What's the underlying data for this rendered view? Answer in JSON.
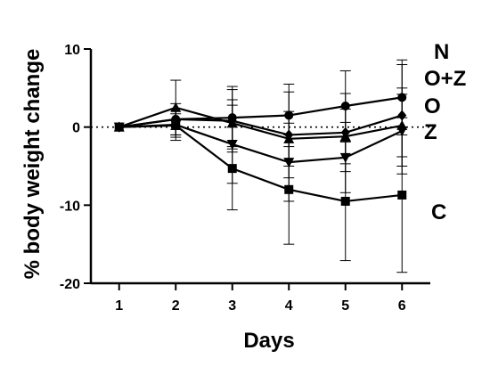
{
  "chart_data": {
    "type": "line",
    "title": "",
    "xlabel": "Days",
    "ylabel": "% body weight change",
    "xlim": [
      0.5,
      6.5
    ],
    "ylim": [
      -20,
      10
    ],
    "x_ticks": [
      1,
      2,
      3,
      4,
      5,
      6
    ],
    "y_ticks": [
      10,
      0,
      -10,
      -20
    ],
    "reference_line": {
      "y": 0,
      "style": "dotted"
    },
    "grid": false,
    "legend": "inline labels at right end of lines",
    "x": [
      1,
      2,
      3,
      4,
      5,
      6
    ],
    "series": [
      {
        "name": "N",
        "marker": "circle",
        "values": [
          0,
          1.0,
          1.2,
          1.5,
          2.7,
          3.8
        ],
        "errors": [
          0,
          1.3,
          4.0,
          4.0,
          4.5,
          4.8
        ]
      },
      {
        "name": "O+Z",
        "marker": "diamond",
        "values": [
          0,
          1.0,
          0.8,
          -1.0,
          -0.7,
          1.5
        ],
        "errors": [
          0,
          2.0,
          4.0,
          5.5,
          5.0,
          6.5
        ]
      },
      {
        "name": "O",
        "marker": "triangle-up",
        "values": [
          0,
          2.5,
          0.5,
          -1.5,
          -1.2,
          0.2
        ],
        "errors": [
          0,
          3.5,
          3.0,
          3.5,
          3.5,
          4.0
        ]
      },
      {
        "name": "Z",
        "marker": "triangle-down",
        "values": [
          0,
          0.3,
          -2.2,
          -4.5,
          -3.9,
          -0.5
        ],
        "errors": [
          0,
          2.0,
          5.0,
          5.0,
          4.5,
          5.5
        ]
      },
      {
        "name": "C",
        "marker": "square",
        "values": [
          0,
          0.2,
          -5.3,
          -8.0,
          -9.5,
          -8.7
        ],
        "errors": [
          0,
          1.5,
          5.3,
          7.0,
          7.6,
          9.9
        ]
      }
    ]
  }
}
